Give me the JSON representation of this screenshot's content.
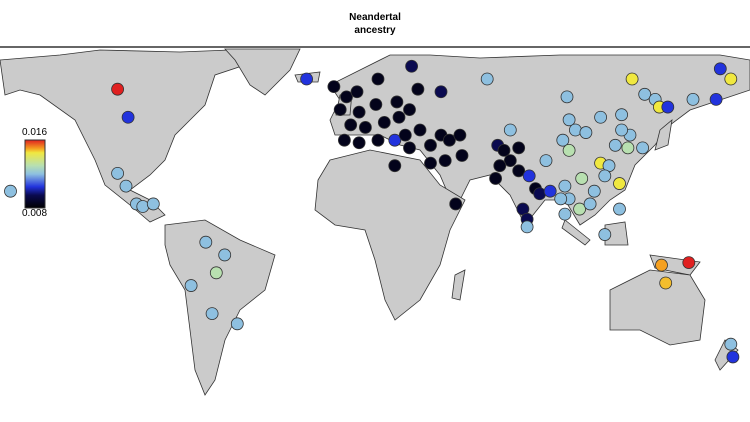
{
  "title_lines": [
    "Neandertal",
    "ancestry"
  ],
  "legend": {
    "ticks": [
      0.016,
      0.008
    ],
    "color_stops": [
      [
        0.008,
        "#000000"
      ],
      [
        0.0095,
        "#0a0a50"
      ],
      [
        0.0105,
        "#2233dd"
      ],
      [
        0.012,
        "#8ec0e0"
      ],
      [
        0.013,
        "#b8e0b0"
      ],
      [
        0.0145,
        "#f0e840"
      ],
      [
        0.015,
        "#f5a020"
      ],
      [
        0.016,
        "#e02020"
      ]
    ]
  },
  "points": [
    {
      "lon": -114,
      "lat": 56,
      "value": 0.016
    },
    {
      "lon": -109,
      "lat": 45,
      "value": 0.0105
    },
    {
      "lon": -114,
      "lat": 23,
      "value": 0.012
    },
    {
      "lon": -165,
      "lat": 16,
      "value": 0.012
    },
    {
      "lon": -110,
      "lat": 18,
      "value": 0.012
    },
    {
      "lon": -105,
      "lat": 11,
      "value": 0.012
    },
    {
      "lon": -102,
      "lat": 10,
      "value": 0.012
    },
    {
      "lon": -97,
      "lat": 11,
      "value": 0.012
    },
    {
      "lon": -72,
      "lat": -4,
      "value": 0.012
    },
    {
      "lon": -63,
      "lat": -9,
      "value": 0.012
    },
    {
      "lon": -67,
      "lat": -16,
      "value": 0.013
    },
    {
      "lon": -79,
      "lat": -21,
      "value": 0.012
    },
    {
      "lon": -69,
      "lat": -32,
      "value": 0.012
    },
    {
      "lon": -57,
      "lat": -36,
      "value": 0.012
    },
    {
      "lon": -24,
      "lat": 60,
      "value": 0.0105
    },
    {
      "lon": -11,
      "lat": 57,
      "value": 0.0085
    },
    {
      "lon": -5,
      "lat": 53,
      "value": 0.0085
    },
    {
      "lon": -8,
      "lat": 48,
      "value": 0.0085
    },
    {
      "lon": 0,
      "lat": 55,
      "value": 0.0085
    },
    {
      "lon": 10,
      "lat": 60,
      "value": 0.0085
    },
    {
      "lon": 26,
      "lat": 65,
      "value": 0.0095
    },
    {
      "lon": 40,
      "lat": 55,
      "value": 0.0095
    },
    {
      "lon": 19,
      "lat": 51,
      "value": 0.0085
    },
    {
      "lon": 29,
      "lat": 56,
      "value": 0.0085
    },
    {
      "lon": 9,
      "lat": 50,
      "value": 0.0085
    },
    {
      "lon": 1,
      "lat": 47,
      "value": 0.0085
    },
    {
      "lon": -3,
      "lat": 42,
      "value": 0.0085
    },
    {
      "lon": 4,
      "lat": 41,
      "value": 0.0085
    },
    {
      "lon": 13,
      "lat": 43,
      "value": 0.0085
    },
    {
      "lon": 20,
      "lat": 45,
      "value": 0.0085
    },
    {
      "lon": 25,
      "lat": 48,
      "value": 0.0085
    },
    {
      "lon": -6,
      "lat": 36,
      "value": 0.0085
    },
    {
      "lon": 1,
      "lat": 35,
      "value": 0.0085
    },
    {
      "lon": 10,
      "lat": 36,
      "value": 0.0085
    },
    {
      "lon": 18,
      "lat": 36,
      "value": 0.0105
    },
    {
      "lon": 23,
      "lat": 38,
      "value": 0.0085
    },
    {
      "lon": 30,
      "lat": 40,
      "value": 0.0085
    },
    {
      "lon": 35,
      "lat": 34,
      "value": 0.0085
    },
    {
      "lon": 40,
      "lat": 38,
      "value": 0.0085
    },
    {
      "lon": 44,
      "lat": 36,
      "value": 0.0085
    },
    {
      "lon": 49,
      "lat": 38,
      "value": 0.0085
    },
    {
      "lon": 42,
      "lat": 28,
      "value": 0.0085
    },
    {
      "lon": 35,
      "lat": 27,
      "value": 0.0085
    },
    {
      "lon": 50,
      "lat": 30,
      "value": 0.0085
    },
    {
      "lon": 47,
      "lat": 11,
      "value": 0.0085
    },
    {
      "lon": 18,
      "lat": 26,
      "value": 0.0085
    },
    {
      "lon": 25,
      "lat": 33,
      "value": 0.0085
    },
    {
      "lon": 62,
      "lat": 60,
      "value": 0.012
    },
    {
      "lon": 73,
      "lat": 40,
      "value": 0.012
    },
    {
      "lon": 67,
      "lat": 34,
      "value": 0.0095
    },
    {
      "lon": 70,
      "lat": 32,
      "value": 0.0085
    },
    {
      "lon": 73,
      "lat": 28,
      "value": 0.0085
    },
    {
      "lon": 77,
      "lat": 33,
      "value": 0.0085
    },
    {
      "lon": 77,
      "lat": 24,
      "value": 0.0085
    },
    {
      "lon": 68,
      "lat": 26,
      "value": 0.0085
    },
    {
      "lon": 66,
      "lat": 21,
      "value": 0.0085
    },
    {
      "lon": 82,
      "lat": 22,
      "value": 0.0105
    },
    {
      "lon": 85,
      "lat": 17,
      "value": 0.0085
    },
    {
      "lon": 87,
      "lat": 15,
      "value": 0.0095
    },
    {
      "lon": 79,
      "lat": 9,
      "value": 0.0095
    },
    {
      "lon": 81,
      "lat": 5,
      "value": 0.0095
    },
    {
      "lon": 81,
      "lat": 2,
      "value": 0.012
    },
    {
      "lon": 92,
      "lat": 16,
      "value": 0.0105
    },
    {
      "lon": 100,
      "lat": 53,
      "value": 0.012
    },
    {
      "lon": 101,
      "lat": 44,
      "value": 0.012
    },
    {
      "lon": 104,
      "lat": 40,
      "value": 0.012
    },
    {
      "lon": 116,
      "lat": 45,
      "value": 0.012
    },
    {
      "lon": 126,
      "lat": 46,
      "value": 0.012
    },
    {
      "lon": 131,
      "lat": 60,
      "value": 0.0145
    },
    {
      "lon": 137,
      "lat": 54,
      "value": 0.012
    },
    {
      "lon": 142,
      "lat": 52,
      "value": 0.012
    },
    {
      "lon": 144,
      "lat": 49,
      "value": 0.0145
    },
    {
      "lon": 148,
      "lat": 49,
      "value": 0.0105
    },
    {
      "lon": 160,
      "lat": 52,
      "value": 0.012
    },
    {
      "lon": 171,
      "lat": 52,
      "value": 0.0105
    },
    {
      "lon": 173,
      "lat": 64,
      "value": 0.0105
    },
    {
      "lon": 178,
      "lat": 60,
      "value": 0.0145
    },
    {
      "lon": 109,
      "lat": 39,
      "value": 0.012
    },
    {
      "lon": 98,
      "lat": 36,
      "value": 0.012
    },
    {
      "lon": 90,
      "lat": 28,
      "value": 0.012
    },
    {
      "lon": 101,
      "lat": 32,
      "value": 0.013
    },
    {
      "lon": 116,
      "lat": 27,
      "value": 0.0145
    },
    {
      "lon": 123,
      "lat": 34,
      "value": 0.012
    },
    {
      "lon": 129,
      "lat": 33,
      "value": 0.013
    },
    {
      "lon": 130,
      "lat": 38,
      "value": 0.012
    },
    {
      "lon": 126,
      "lat": 40,
      "value": 0.012
    },
    {
      "lon": 136,
      "lat": 33,
      "value": 0.012
    },
    {
      "lon": 125,
      "lat": 19,
      "value": 0.0145
    },
    {
      "lon": 120,
      "lat": 26,
      "value": 0.012
    },
    {
      "lon": 118,
      "lat": 22,
      "value": 0.012
    },
    {
      "lon": 113,
      "lat": 16,
      "value": 0.012
    },
    {
      "lon": 107,
      "lat": 21,
      "value": 0.013
    },
    {
      "lon": 99,
      "lat": 18,
      "value": 0.012
    },
    {
      "lon": 101,
      "lat": 13,
      "value": 0.012
    },
    {
      "lon": 106,
      "lat": 9,
      "value": 0.013
    },
    {
      "lon": 111,
      "lat": 11,
      "value": 0.012
    },
    {
      "lon": 97,
      "lat": 13,
      "value": 0.012
    },
    {
      "lon": 125,
      "lat": 9,
      "value": 0.012
    },
    {
      "lon": 118,
      "lat": -1,
      "value": 0.012
    },
    {
      "lon": 99,
      "lat": 7,
      "value": 0.012
    },
    {
      "lon": 145,
      "lat": -13,
      "value": 0.015
    },
    {
      "lon": 158,
      "lat": -12,
      "value": 0.016
    },
    {
      "lon": 147,
      "lat": -20,
      "value": 0.0148
    },
    {
      "lon": 178,
      "lat": -44,
      "value": 0.012
    },
    {
      "lon": 179,
      "lat": -49,
      "value": 0.0105
    }
  ]
}
